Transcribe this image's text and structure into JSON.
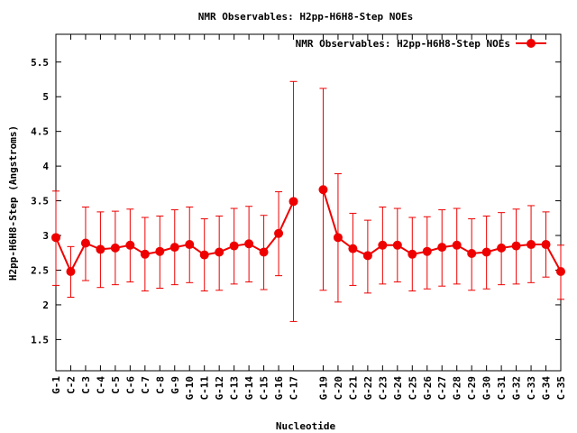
{
  "chart_data": {
    "type": "line",
    "title": "NMR Observables: H2pp-H6H8-Step NOEs",
    "xlabel": "Nucleotide",
    "ylabel": "H2pp-H6H8-Step (Angstroms)",
    "ylim": [
      1.05,
      5.9
    ],
    "yticks": [
      "1.5",
      "2",
      "2.5",
      "3",
      "3.5",
      "4",
      "4.5",
      "5",
      "5.5"
    ],
    "xlim": [
      1,
      35
    ],
    "categories": [
      "G-1",
      "C-2",
      "C-3",
      "C-4",
      "C-5",
      "C-6",
      "C-7",
      "C-8",
      "G-9",
      "G-10",
      "C-11",
      "G-12",
      "C-13",
      "G-14",
      "C-15",
      "G-16",
      "C-17",
      "G-19",
      "C-20",
      "C-21",
      "G-22",
      "C-23",
      "G-24",
      "C-25",
      "G-26",
      "C-27",
      "G-28",
      "C-29",
      "G-30",
      "C-31",
      "G-32",
      "C-33",
      "G-34",
      "C-35"
    ],
    "positions": [
      1,
      2,
      3,
      4,
      5,
      6,
      7,
      8,
      9,
      10,
      11,
      12,
      13,
      14,
      15,
      16,
      17,
      19,
      20,
      21,
      22,
      23,
      24,
      25,
      26,
      27,
      28,
      29,
      30,
      31,
      32,
      33,
      34,
      35
    ],
    "series": [
      {
        "name": "NMR Observables: H2pp-H6H8-Step NOEs",
        "color": "#ee0000",
        "values": [
          2.97,
          2.48,
          2.89,
          2.8,
          2.82,
          2.86,
          2.73,
          2.77,
          2.83,
          2.87,
          2.72,
          2.76,
          2.85,
          2.88,
          2.76,
          3.03,
          3.49,
          3.66,
          2.97,
          2.81,
          2.71,
          2.86,
          2.86,
          2.73,
          2.77,
          2.83,
          2.86,
          2.74,
          2.76,
          2.82,
          2.85,
          2.87,
          2.87,
          2.48
        ],
        "error_low": [
          2.28,
          2.11,
          2.35,
          2.25,
          2.29,
          2.33,
          2.2,
          2.24,
          2.29,
          2.32,
          2.2,
          2.21,
          2.3,
          2.33,
          2.22,
          2.42,
          1.76,
          2.21,
          2.04,
          2.28,
          2.17,
          2.3,
          2.33,
          2.2,
          2.23,
          2.27,
          2.3,
          2.21,
          2.23,
          2.29,
          2.3,
          2.32,
          2.4,
          2.08
        ],
        "error_high": [
          3.64,
          2.84,
          3.41,
          3.34,
          3.35,
          3.38,
          3.26,
          3.28,
          3.37,
          3.41,
          3.24,
          3.28,
          3.39,
          3.42,
          3.29,
          3.63,
          5.22,
          5.12,
          3.89,
          3.32,
          3.22,
          3.41,
          3.39,
          3.26,
          3.27,
          3.37,
          3.39,
          3.24,
          3.28,
          3.33,
          3.38,
          3.43,
          3.34,
          2.86
        ]
      }
    ],
    "segments": [
      [
        0,
        16
      ],
      [
        17,
        33
      ]
    ],
    "grid": false,
    "legend": "top-right"
  }
}
